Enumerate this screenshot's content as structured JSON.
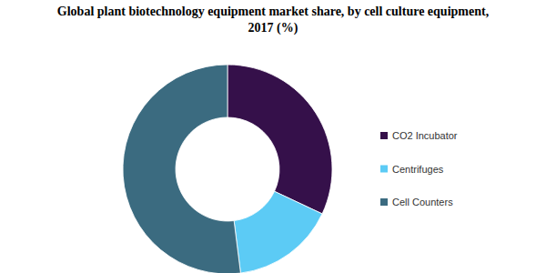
{
  "chart_data": {
    "type": "donut",
    "title": [
      "Global plant biotechnology equipment market share, by cell culture equipment,",
      "2017 (%)"
    ],
    "categories": [
      "CO2 Incubator",
      "Centrifuges",
      "Cell Counters"
    ],
    "values": [
      32,
      16,
      52
    ],
    "colors": [
      "#35104a",
      "#5ccbf5",
      "#3b6b80"
    ],
    "legend": "right"
  }
}
